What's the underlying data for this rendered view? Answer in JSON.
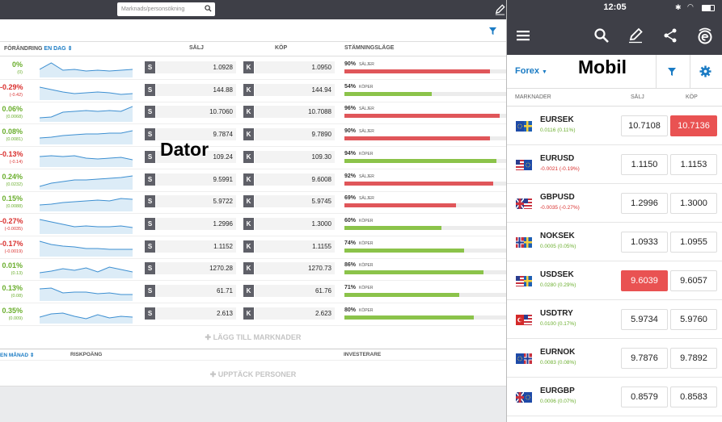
{
  "desktop": {
    "search_placeholder": "Marknads/personsökning",
    "columns": {
      "change": "FÖRÄNDRING",
      "period": "EN DAG",
      "sell": "SÄLJ",
      "buy": "KÖP",
      "sentiment": "STÄMNINGSLÄGE"
    },
    "sell_btn": "S",
    "buy_btn": "K",
    "rows": [
      {
        "chg": "0%",
        "abs": "(0)",
        "dir": "pos",
        "sell": "1.0928",
        "buy": "1.0950",
        "pct": "90%",
        "side": "SÄLJER",
        "fill": 0.9
      },
      {
        "chg": "-0.29%",
        "abs": "(-0.42)",
        "dir": "neg",
        "sell": "144.88",
        "buy": "144.94",
        "pct": "54%",
        "side": "KÖPER",
        "fill": 0.54
      },
      {
        "chg": "0.06%",
        "abs": "(0.0068)",
        "dir": "pos",
        "sell": "10.7060",
        "buy": "10.7088",
        "pct": "96%",
        "side": "SÄLJER",
        "fill": 0.96
      },
      {
        "chg": "0.08%",
        "abs": "(0.0081)",
        "dir": "pos",
        "sell": "9.7874",
        "buy": "9.7890",
        "pct": "90%",
        "side": "SÄLJER",
        "fill": 0.9
      },
      {
        "chg": "-0.13%",
        "abs": "(-0.14)",
        "dir": "neg",
        "sell": "109.24",
        "buy": "109.30",
        "pct": "94%",
        "side": "KÖPER",
        "fill": 0.94
      },
      {
        "chg": "0.24%",
        "abs": "(0.0232)",
        "dir": "pos",
        "sell": "9.5991",
        "buy": "9.6008",
        "pct": "92%",
        "side": "SÄLJER",
        "fill": 0.92
      },
      {
        "chg": "0.15%",
        "abs": "(0.0088)",
        "dir": "pos",
        "sell": "5.9722",
        "buy": "5.9745",
        "pct": "69%",
        "side": "SÄLJER",
        "fill": 0.69
      },
      {
        "chg": "-0.27%",
        "abs": "(-0.0035)",
        "dir": "neg",
        "sell": "1.2996",
        "buy": "1.3000",
        "pct": "60%",
        "side": "KÖPER",
        "fill": 0.6
      },
      {
        "chg": "-0.17%",
        "abs": "(-0.0019)",
        "dir": "neg",
        "sell": "1.1152",
        "buy": "1.1155",
        "pct": "74%",
        "side": "KÖPER",
        "fill": 0.74
      },
      {
        "chg": "0.01%",
        "abs": "(0.13)",
        "dir": "pos",
        "sell": "1270.28",
        "buy": "1270.73",
        "pct": "86%",
        "side": "KÖPER",
        "fill": 0.86
      },
      {
        "chg": "0.13%",
        "abs": "(0.08)",
        "dir": "pos",
        "sell": "61.71",
        "buy": "61.76",
        "pct": "71%",
        "side": "KÖPER",
        "fill": 0.71
      },
      {
        "chg": "0.35%",
        "abs": "(0.009)",
        "dir": "pos",
        "sell": "2.613",
        "buy": "2.623",
        "pct": "80%",
        "side": "KÖPER",
        "fill": 0.8
      }
    ],
    "add_markets": "LÄGG TILL MARKNADER",
    "footer_columns": {
      "period": "EN MÅNAD",
      "risk": "RISKPOÄNG",
      "investors": "INVESTERARE"
    },
    "discover_people": "UPPTÄCK PERSONER"
  },
  "label_dator": "Dator",
  "label_mobil": "Mobil",
  "mobile": {
    "time": "12:05",
    "category": "Forex",
    "columns": {
      "markets": "MARKNADER",
      "sell": "SÄLJ",
      "buy": "KÖP"
    },
    "rows": [
      {
        "name": "EURSEK",
        "chg": "0.0116 (0.11%)",
        "dir": "pos",
        "sell": "10.7108",
        "buy": "10.7136",
        "hl": "buy"
      },
      {
        "name": "EURUSD",
        "chg": "-0.0021 (-0.19%)",
        "dir": "neg",
        "sell": "1.1150",
        "buy": "1.1153",
        "hl": ""
      },
      {
        "name": "GBPUSD",
        "chg": "-0.0035 (-0.27%)",
        "dir": "neg",
        "sell": "1.2996",
        "buy": "1.3000",
        "hl": ""
      },
      {
        "name": "NOKSEK",
        "chg": "0.0005 (0.05%)",
        "dir": "pos",
        "sell": "1.0933",
        "buy": "1.0955",
        "hl": ""
      },
      {
        "name": "USDSEK",
        "chg": "0.0280 (0.29%)",
        "dir": "pos",
        "sell": "9.6039",
        "buy": "9.6057",
        "hl": "sell"
      },
      {
        "name": "USDTRY",
        "chg": "0.0100 (0.17%)",
        "dir": "pos",
        "sell": "5.9734",
        "buy": "5.9760",
        "hl": ""
      },
      {
        "name": "EURNOK",
        "chg": "0.0083 (0.08%)",
        "dir": "pos",
        "sell": "9.7876",
        "buy": "9.7892",
        "hl": ""
      },
      {
        "name": "EURGBP",
        "chg": "0.0006 (0.07%)",
        "dir": "pos",
        "sell": "0.8579",
        "buy": "0.8583",
        "hl": ""
      }
    ],
    "flags": [
      "eu-se",
      "us-eu",
      "gb-us",
      "no-se",
      "us-se",
      "tr-us",
      "eu-no",
      "gb-eu"
    ],
    "icons": [
      "menu-icon",
      "search-icon",
      "pencil-icon",
      "share-icon",
      "etoro-logo-icon",
      "filter-icon",
      "gear-icon"
    ]
  },
  "colors": {
    "topbar": "#3e3f47",
    "accent": "#1a7bc4",
    "positive": "#6aae2d",
    "negative": "#d9302e",
    "sell_bar": "#e0565a",
    "buy_bar": "#8bc34a",
    "highlight": "#e95252"
  }
}
